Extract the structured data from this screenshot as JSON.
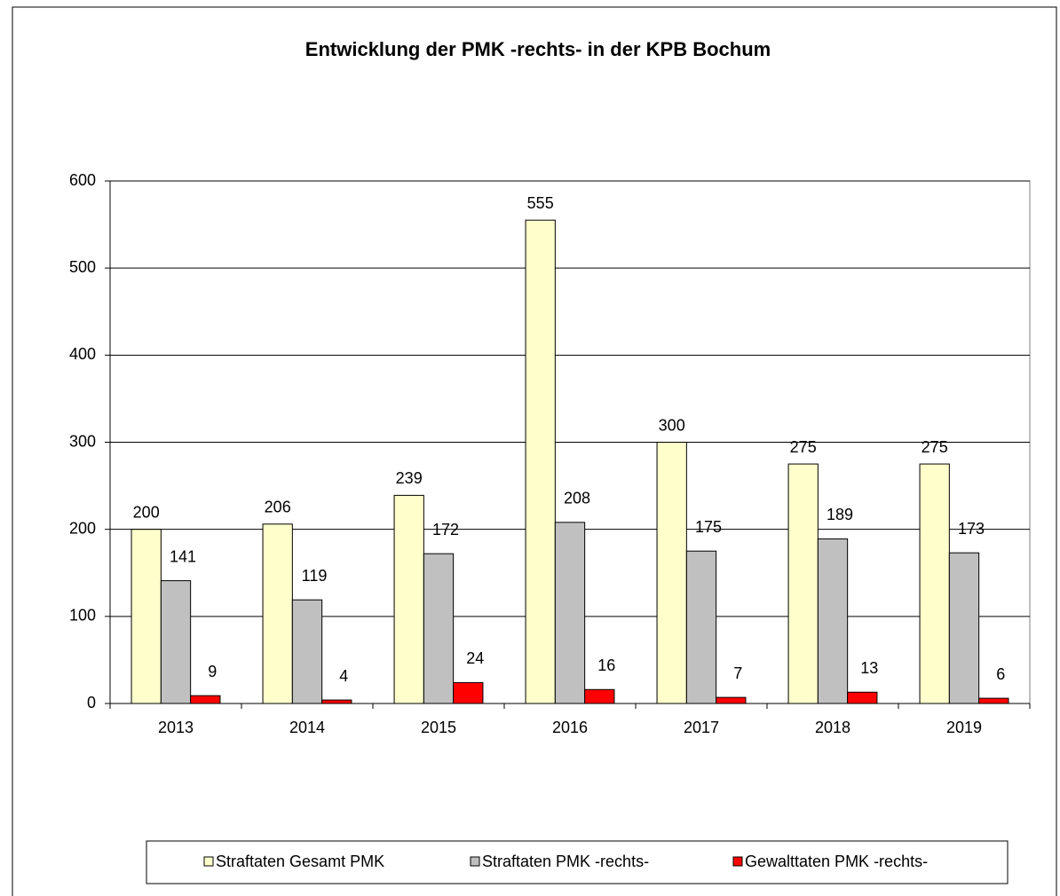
{
  "chart_data": {
    "type": "bar",
    "title": "Entwicklung der PMK -rechts- in der KPB Bochum",
    "categories": [
      "2013",
      "2014",
      "2015",
      "2016",
      "2017",
      "2018",
      "2019"
    ],
    "series": [
      {
        "name": "Straftaten Gesamt PMK",
        "color": "#ffffcc",
        "values": [
          200,
          206,
          239,
          555,
          300,
          275,
          275
        ]
      },
      {
        "name": "Straftaten PMK -rechts-",
        "color": "#c0c0c0",
        "values": [
          141,
          119,
          172,
          208,
          175,
          189,
          173
        ]
      },
      {
        "name": "Gewalttaten PMK -rechts-",
        "color": "#ff0000",
        "values": [
          9,
          4,
          24,
          16,
          7,
          13,
          6
        ]
      }
    ],
    "ylim": [
      0,
      600
    ],
    "yticks": [
      0,
      100,
      200,
      300,
      400,
      500,
      600
    ],
    "grid": true,
    "legend": "bottom"
  }
}
